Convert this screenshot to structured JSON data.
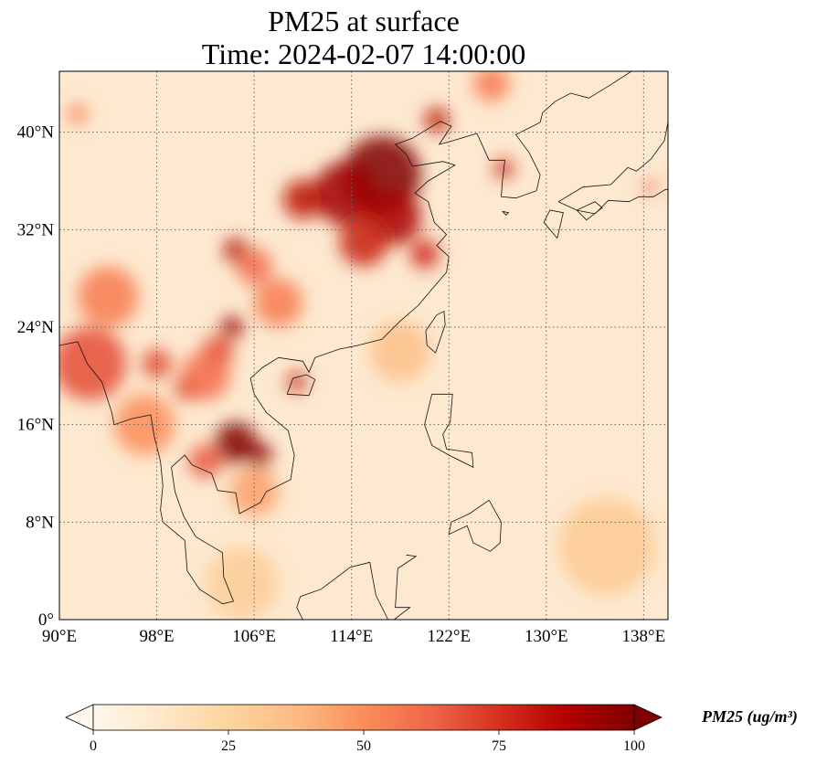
{
  "title": {
    "line1": "PM25 at surface",
    "line2": "Time: 2024-02-07 14:00:00"
  },
  "map": {
    "lon_range": [
      90,
      140
    ],
    "lat_range": [
      0,
      45
    ],
    "lon_ticks": [
      {
        "value": 90,
        "label": "90°E"
      },
      {
        "value": 98,
        "label": "98°E"
      },
      {
        "value": 106,
        "label": "106°E"
      },
      {
        "value": 114,
        "label": "114°E"
      },
      {
        "value": 122,
        "label": "122°E"
      },
      {
        "value": 130,
        "label": "130°E"
      },
      {
        "value": 138,
        "label": "138°E"
      }
    ],
    "lat_ticks": [
      {
        "value": 0,
        "label": "0°"
      },
      {
        "value": 8,
        "label": "8°N"
      },
      {
        "value": 16,
        "label": "16°N"
      },
      {
        "value": 24,
        "label": "24°N"
      },
      {
        "value": 32,
        "label": "32°N"
      },
      {
        "value": 40,
        "label": "40°N"
      }
    ],
    "gridlines": true,
    "colormap": "OrRd",
    "hotspots": [
      {
        "lon": 116.5,
        "lat": 36.5,
        "value": 100,
        "radius_deg": 3.2
      },
      {
        "lon": 113.5,
        "lat": 35.0,
        "value": 92,
        "radius_deg": 2.6
      },
      {
        "lon": 110.0,
        "lat": 34.5,
        "value": 85,
        "radius_deg": 1.6
      },
      {
        "lon": 117.5,
        "lat": 33.0,
        "value": 90,
        "radius_deg": 2.2
      },
      {
        "lon": 115.0,
        "lat": 31.0,
        "value": 80,
        "radius_deg": 2.0
      },
      {
        "lon": 120.0,
        "lat": 30.0,
        "value": 78,
        "radius_deg": 1.2
      },
      {
        "lon": 104.5,
        "lat": 30.3,
        "value": 88,
        "radius_deg": 1.0
      },
      {
        "lon": 106.0,
        "lat": 29.0,
        "value": 60,
        "radius_deg": 1.5
      },
      {
        "lon": 108.0,
        "lat": 26.0,
        "value": 55,
        "radius_deg": 2.0
      },
      {
        "lon": 104.2,
        "lat": 24.0,
        "value": 92,
        "radius_deg": 0.9
      },
      {
        "lon": 103.0,
        "lat": 22.0,
        "value": 70,
        "radius_deg": 1.3
      },
      {
        "lon": 109.5,
        "lat": 19.5,
        "value": 82,
        "radius_deg": 0.8
      },
      {
        "lon": 104.5,
        "lat": 14.5,
        "value": 100,
        "radius_deg": 1.7
      },
      {
        "lon": 106.5,
        "lat": 13.5,
        "value": 95,
        "radius_deg": 1.0
      },
      {
        "lon": 102.0,
        "lat": 13.0,
        "value": 65,
        "radius_deg": 1.4
      },
      {
        "lon": 100.5,
        "lat": 19.0,
        "value": 75,
        "radius_deg": 1.0
      },
      {
        "lon": 98.0,
        "lat": 21.0,
        "value": 70,
        "radius_deg": 1.2
      },
      {
        "lon": 92.5,
        "lat": 21.0,
        "value": 68,
        "radius_deg": 3.0
      },
      {
        "lon": 94.0,
        "lat": 26.5,
        "value": 55,
        "radius_deg": 2.5
      },
      {
        "lon": 102.0,
        "lat": 20.0,
        "value": 60,
        "radius_deg": 2.0
      },
      {
        "lon": 121.0,
        "lat": 41.0,
        "value": 85,
        "radius_deg": 1.0
      },
      {
        "lon": 126.5,
        "lat": 37.0,
        "value": 80,
        "radius_deg": 0.8
      },
      {
        "lon": 125.5,
        "lat": 44.0,
        "value": 55,
        "radius_deg": 1.5
      },
      {
        "lon": 106.0,
        "lat": 10.5,
        "value": 45,
        "radius_deg": 2.0
      },
      {
        "lon": 97.0,
        "lat": 16.0,
        "value": 50,
        "radius_deg": 2.5
      },
      {
        "lon": 91.5,
        "lat": 41.5,
        "value": 55,
        "radius_deg": 0.8
      },
      {
        "lon": 105.0,
        "lat": 3.0,
        "value": 28,
        "radius_deg": 3.0
      },
      {
        "lon": 118.0,
        "lat": 22.0,
        "value": 35,
        "radius_deg": 2.5
      },
      {
        "lon": 135.0,
        "lat": 6.0,
        "value": 30,
        "radius_deg": 4.0
      },
      {
        "lon": 138.5,
        "lat": 35.5,
        "value": 70,
        "radius_deg": 0.5
      }
    ]
  },
  "colorbar": {
    "min": 0,
    "max": 100,
    "ticks": [
      {
        "value": 0,
        "label": "0"
      },
      {
        "value": 25,
        "label": "25"
      },
      {
        "value": 50,
        "label": "50"
      },
      {
        "value": 75,
        "label": "75"
      },
      {
        "value": 100,
        "label": "100"
      }
    ],
    "label": "PM25 (ug/m³)",
    "extend": "both",
    "colors": [
      "#fff7ec",
      "#fee8c8",
      "#fdd49e",
      "#fdbb84",
      "#fc8d59",
      "#ef6548",
      "#d7301f",
      "#b30000",
      "#7f0000"
    ]
  }
}
